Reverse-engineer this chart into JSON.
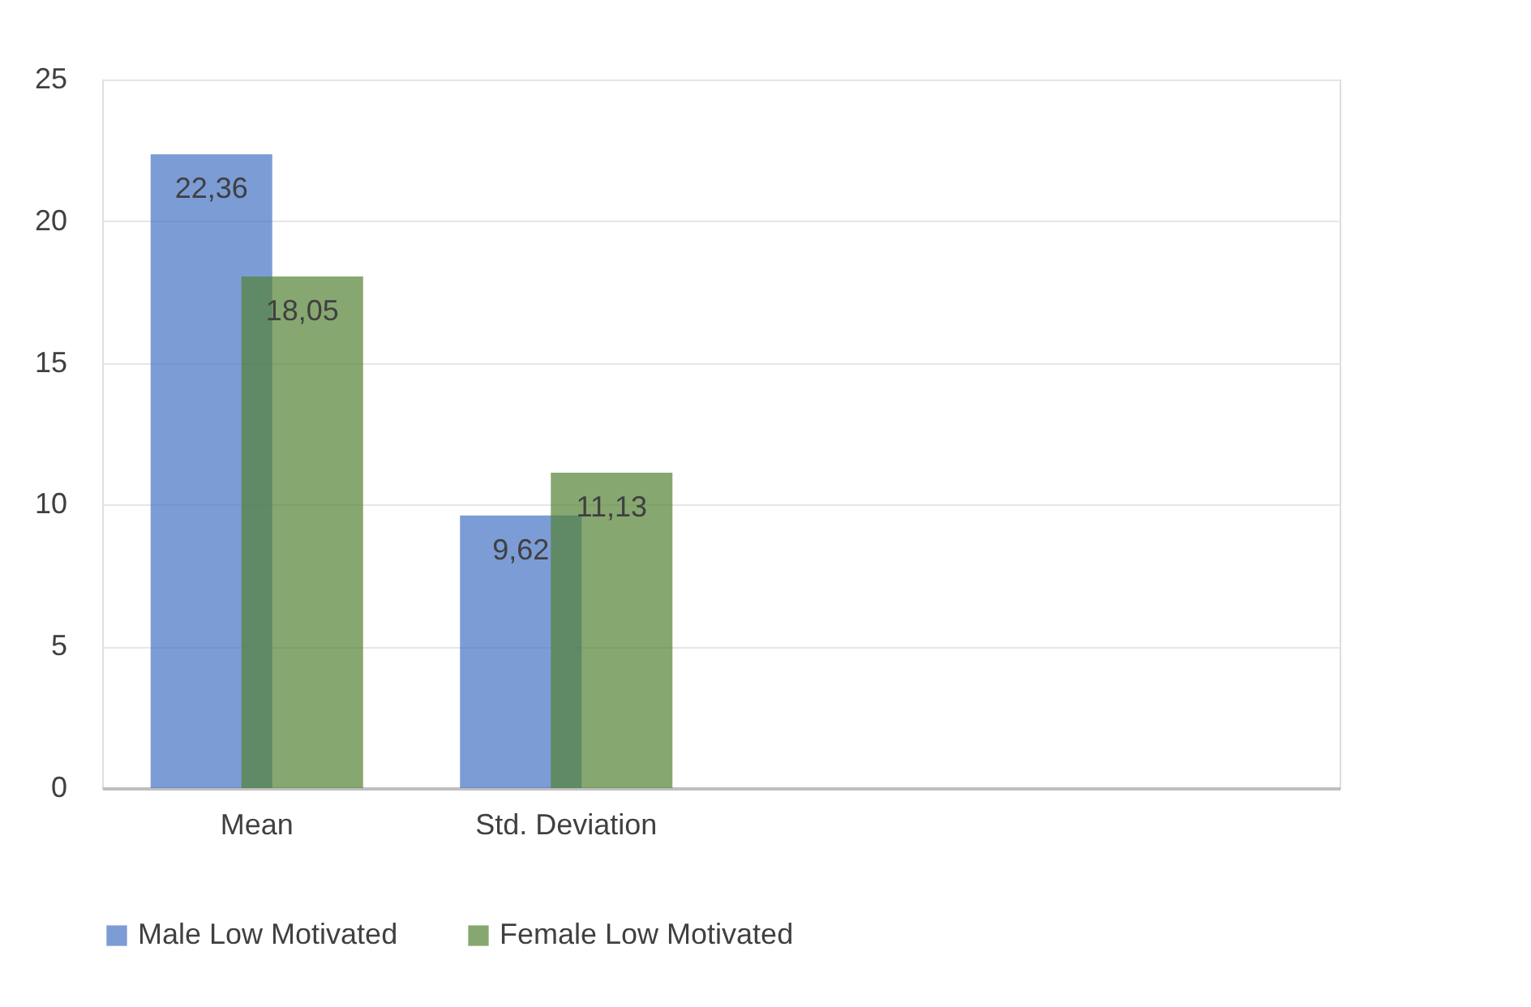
{
  "chart_data": {
    "type": "bar",
    "categories": [
      "Mean",
      "Std. Deviation",
      null,
      null
    ],
    "series": [
      {
        "name": "Male Low Motivated",
        "color": "#4472c4",
        "values": [
          22.36,
          9.62,
          null,
          null
        ],
        "value_labels": [
          "22,36",
          "9,62",
          null,
          null
        ]
      },
      {
        "name": "Female Low Motivated",
        "color": "#548235",
        "values": [
          18.05,
          11.13,
          null,
          null
        ],
        "value_labels": [
          "18,05",
          "11,13",
          null,
          null
        ]
      }
    ],
    "ylim": [
      0,
      25
    ],
    "yticks": [
      0,
      5,
      10,
      15,
      20,
      25
    ],
    "grid": "y",
    "legend": "bottom"
  }
}
